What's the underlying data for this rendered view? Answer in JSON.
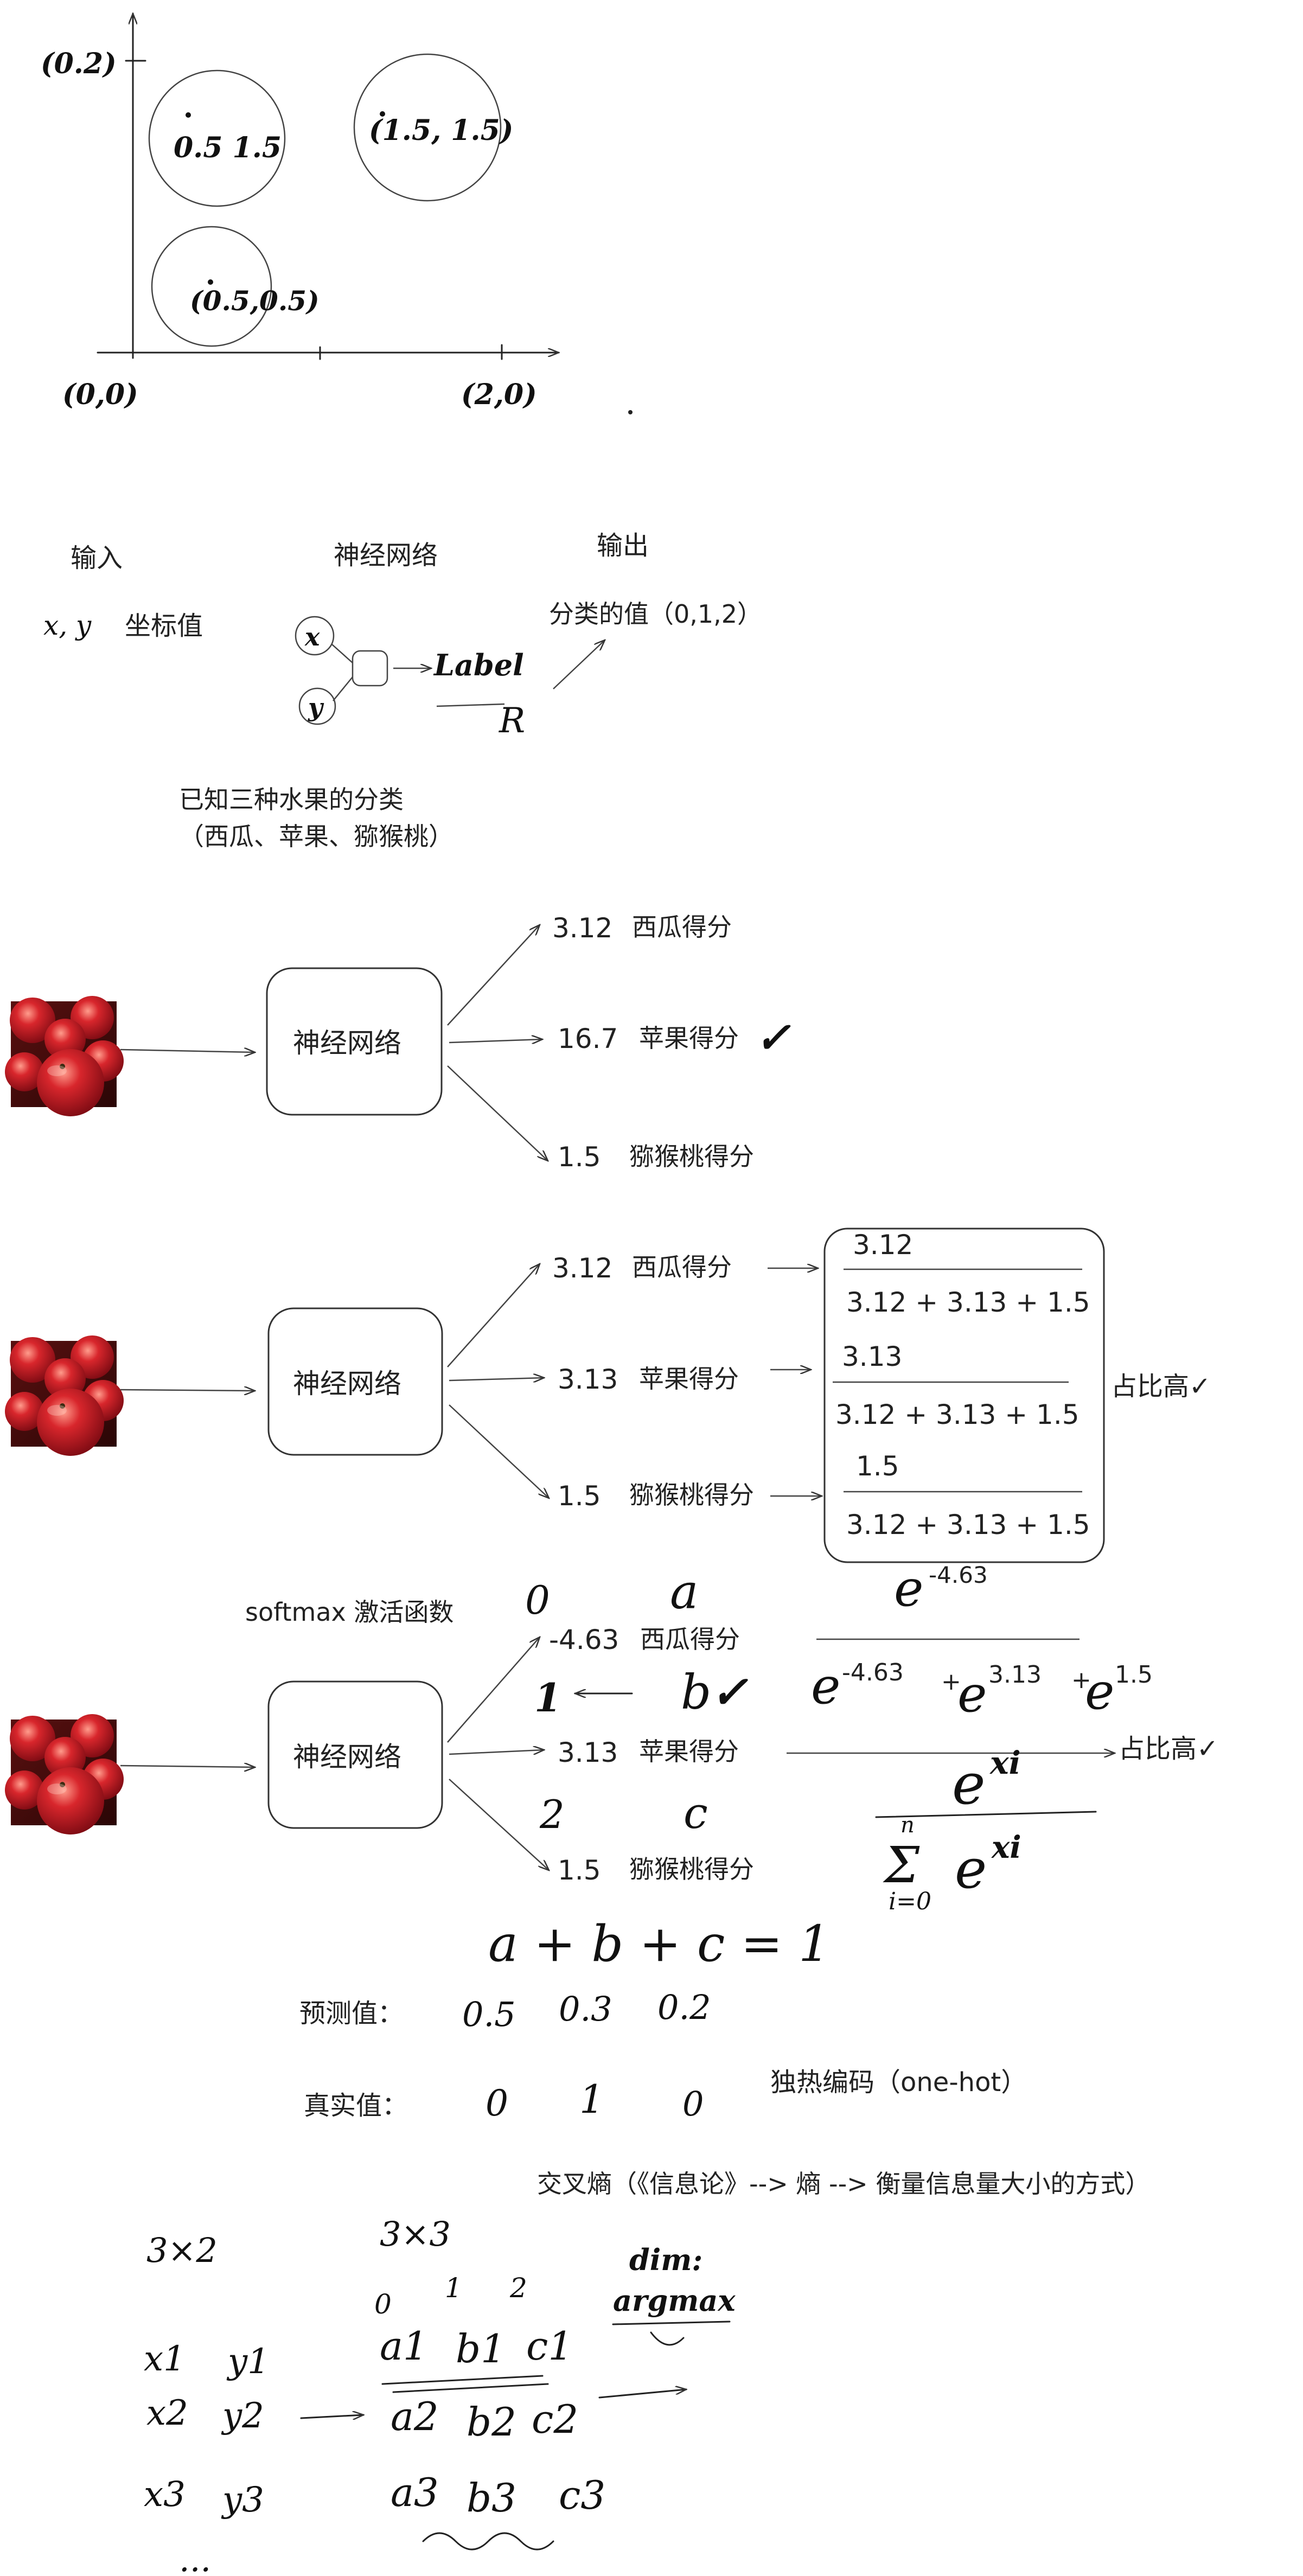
{
  "coordinate_plot": {
    "y_top_label": "(0.2)",
    "origin_label": "(0,0)",
    "x_end_label": "(2,0)",
    "circle_labels": [
      "0.5 1.5",
      "(1.5, 1.5)",
      "(0.5,0.5)"
    ]
  },
  "nn_overview": {
    "input_title": "输入",
    "nn_title": "神经网络",
    "output_title": "输出",
    "input_desc": "坐标值",
    "input_vars": "x, y",
    "node_x": "x",
    "node_y": "y",
    "label_text": "Label",
    "label_sub": "R",
    "output_desc": "分类的值（0,1,2）",
    "fruits_line1": "已知三种水果的分类",
    "fruits_line2": "（西瓜、苹果、猕猴桃）"
  },
  "section1": {
    "nn_label": "神经网络",
    "scores": [
      {
        "value": "3.12",
        "label": "西瓜得分"
      },
      {
        "value": "16.7",
        "label": "苹果得分"
      },
      {
        "value": "1.5",
        "label": "猕猴桃得分"
      }
    ],
    "check": "✓"
  },
  "section2": {
    "nn_label": "神经网络",
    "scores": [
      {
        "value": "3.12",
        "label": "西瓜得分"
      },
      {
        "value": "3.13",
        "label": "苹果得分"
      },
      {
        "value": "1.5",
        "label": "猕猴桃得分"
      }
    ],
    "fractions": [
      {
        "num": "3.12",
        "den": "3.12 + 3.13 + 1.5"
      },
      {
        "num": "3.13",
        "den": "3.12 + 3.13 + 1.5"
      },
      {
        "num": "1.5",
        "den": "3.12 + 3.13 + 1.5"
      }
    ],
    "ratio_note": "占比高✓"
  },
  "section3": {
    "softmax_label": "softmax 激活函数",
    "nn_label": "神经网络",
    "scores": [
      {
        "value": "-4.63",
        "label": "西瓜得分"
      },
      {
        "value": "3.13",
        "label": "苹果得分"
      },
      {
        "value": "1.5",
        "label": "猕猴桃得分"
      }
    ],
    "indices": [
      "0",
      "1",
      "2"
    ],
    "letters": [
      "a",
      "b",
      "c"
    ],
    "check": "✓",
    "frac_num_base": "e",
    "frac_num_exp": "-4.63",
    "frac_den": [
      {
        "base": "e",
        "exp": "-4.63",
        "plus": "+"
      },
      {
        "base": "e",
        "exp": "3.13",
        "plus": "+"
      },
      {
        "base": "e",
        "exp": "1.5",
        "plus": ""
      }
    ],
    "ratio_note": "占比高✓",
    "softmax_num": "e",
    "softmax_num_exp": "xi",
    "softmax_sum": "Σ",
    "softmax_sum_top": "n",
    "softmax_sum_bottom": "i=0",
    "softmax_den": "e",
    "softmax_den_exp": "xi"
  },
  "probabilities": {
    "sum_eq": "a + b + c = 1",
    "pred_label": "预测值：",
    "pred_values": [
      "0.5",
      "0.3",
      "0.2"
    ],
    "true_label": "真实值：",
    "true_values": [
      "0",
      "1",
      "0"
    ],
    "onehot": "独热编码（one-hot）"
  },
  "cross_entropy": {
    "text": "交叉熵（《信息论》--> 熵 --> 衡量信息量大小的方式）"
  },
  "matrix_section": {
    "input_shape": "3×2",
    "output_shape": "3×3",
    "inputs": [
      [
        "x1",
        "y1"
      ],
      [
        "x2",
        "y2"
      ],
      [
        "x3",
        "y3"
      ]
    ],
    "ellipsis": "...",
    "col_indices": [
      "0",
      "1",
      "2"
    ],
    "outputs": [
      [
        "a1",
        "b1",
        "c1"
      ],
      [
        "a2",
        "b2",
        "c2"
      ],
      [
        "a3",
        "b3",
        "c3"
      ]
    ],
    "note_line1": "dim:",
    "note_line2": "argmax"
  }
}
